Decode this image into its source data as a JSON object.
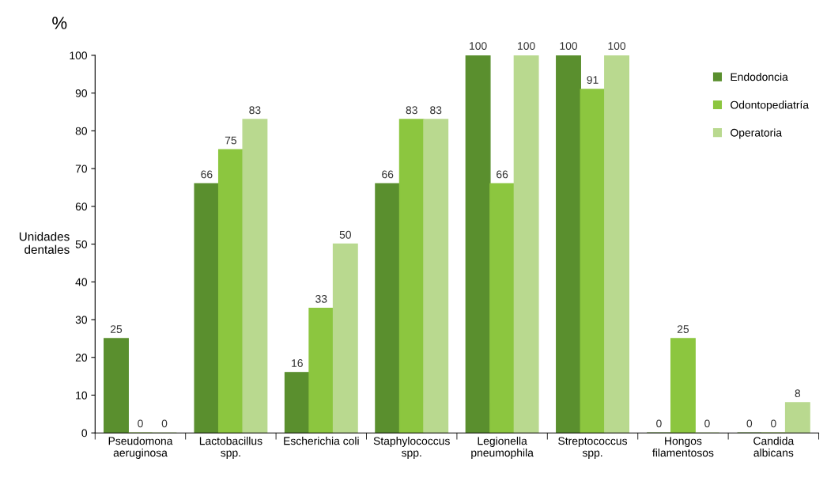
{
  "chart_data": {
    "type": "bar",
    "ylabel": "Unidades\ndentales",
    "annotations": [
      "%"
    ],
    "categories": [
      "Pseudomona\naeruginosa",
      "Lactobacillus\nspp.",
      "Escherichia coli",
      "Staphylococcus\nspp.",
      "Legionella\npneumophila",
      "Streptococcus\nspp.",
      "Hongos\nfilamentosos",
      "Candida\nalbicans"
    ],
    "series": [
      {
        "name": "Endodoncia",
        "color": "#5a8f2e",
        "values": [
          25,
          66,
          16,
          66,
          100,
          100,
          0,
          0
        ]
      },
      {
        "name": "Odontopediatría",
        "color": "#8cc63f",
        "values": [
          0,
          75,
          33,
          83,
          66,
          91,
          25,
          0
        ]
      },
      {
        "name": "Operatoria",
        "color": "#b9d98f",
        "values": [
          0,
          83,
          50,
          83,
          100,
          100,
          0,
          8
        ]
      }
    ],
    "ylim": [
      0,
      100
    ],
    "yticks": [
      0,
      10,
      20,
      30,
      40,
      50,
      60,
      70,
      80,
      90,
      100
    ],
    "data_labels": true,
    "grid": false,
    "legend": "top right"
  }
}
